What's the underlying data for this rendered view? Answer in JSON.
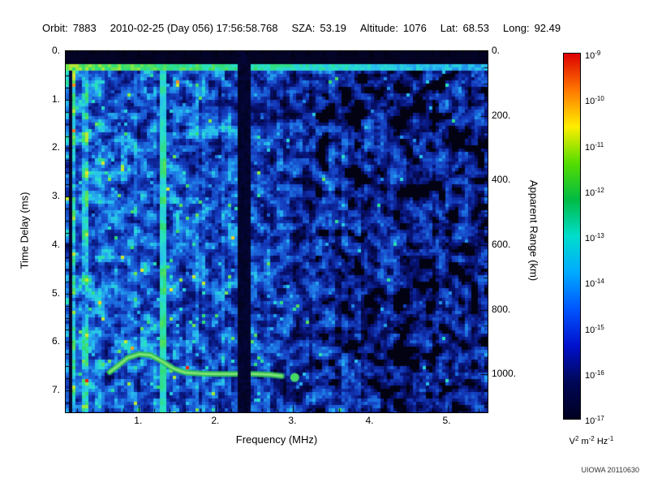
{
  "header": {
    "fields": [
      {
        "label": "Orbit:",
        "value": "7883"
      },
      {
        "label": "",
        "value": "2010-02-25 (Day 056) 17:56:58.768"
      },
      {
        "label": "SZA:",
        "value": "53.19"
      },
      {
        "label": "Altitude:",
        "value": "1076"
      },
      {
        "label": "Lat:",
        "value": "68.53"
      },
      {
        "label": "Long:",
        "value": "92.49"
      }
    ]
  },
  "chart_data": {
    "type": "heatmap",
    "description": "Radar sounder ionogram spectrogram: received spectral density vs frequency and time delay",
    "xlabel": "Frequency (MHz)",
    "ylabel": "Time Delay (ms)",
    "y2label": "Apparent Range (km)",
    "xlim": [
      0.05,
      5.52
    ],
    "ylim": [
      0,
      7.45
    ],
    "x_ticks": [
      1,
      2,
      3,
      4,
      5
    ],
    "x_tick_labels": [
      "1.",
      "2.",
      "3.",
      "4.",
      "5."
    ],
    "y_ticks": [
      0,
      1,
      2,
      3,
      4,
      5,
      6,
      7
    ],
    "y_tick_labels": [
      "0.",
      "1.",
      "2.",
      "3.",
      "4.",
      "5.",
      "6.",
      "7."
    ],
    "y2_ticks_km": [
      0,
      200,
      400,
      600,
      800,
      1000
    ],
    "y2_tick_labels": [
      "0.",
      "200.",
      "400.",
      "600.",
      "800.",
      "1000."
    ],
    "km_per_ms": 150,
    "colorbar": {
      "scale": "log",
      "exponents": [
        "-9",
        "-10",
        "-11",
        "-12",
        "-13",
        "-14",
        "-15",
        "-16",
        "-17"
      ],
      "base": "10",
      "unit_parts": [
        [
          "V",
          false
        ],
        [
          "2",
          true
        ],
        [
          " m",
          false
        ],
        [
          "-2",
          true
        ],
        [
          " Hz",
          false
        ],
        [
          "-1",
          true
        ]
      ],
      "colors_top_to_bottom": [
        "#dd0000",
        "#ff7700",
        "#ffee00",
        "#55dd00",
        "#00bb44",
        "#00ddcc",
        "#00aaff",
        "#0055ff",
        "#0011cc",
        "#000755",
        "#000022"
      ]
    },
    "features": {
      "top_black_band_ms": [
        0,
        0.27
      ],
      "surface_echo_line_ms": 0.31,
      "bright_interference_column_mhz": 1.32,
      "dark_attenuation_band_mhz": [
        2.3,
        2.44
      ],
      "ionosphere_echo_trace_mhz_ms": [
        [
          0.62,
          6.62
        ],
        [
          0.72,
          6.5
        ],
        [
          0.85,
          6.33
        ],
        [
          1.0,
          6.25
        ],
        [
          1.15,
          6.27
        ],
        [
          1.3,
          6.4
        ],
        [
          1.45,
          6.55
        ],
        [
          1.6,
          6.63
        ],
        [
          1.8,
          6.65
        ],
        [
          2.0,
          6.66
        ],
        [
          2.2,
          6.66
        ],
        [
          2.5,
          6.66
        ],
        [
          2.7,
          6.67
        ],
        [
          2.85,
          6.7
        ]
      ],
      "trace_end_blob_mhz_ms": [
        3.02,
        6.73
      ]
    }
  },
  "credit": "UIOWA 20110630"
}
